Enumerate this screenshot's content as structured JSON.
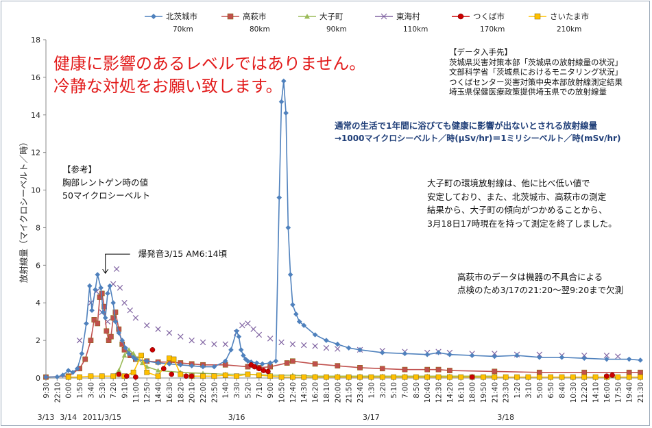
{
  "chart_data": {
    "type": "line",
    "ylabel": "放射線量（マイクロシーベルト／時）",
    "ylim": [
      0,
      18
    ],
    "yticks": [
      0,
      2,
      4,
      6,
      8,
      10,
      12,
      14,
      16,
      18
    ],
    "legend_position": "top",
    "grid": false,
    "xtick_labels": [
      "9:30",
      "22:10",
      "0:00",
      "1:50",
      "3:40",
      "5:30",
      "7:20",
      "9:10",
      "11:00",
      "12:50",
      "14:40",
      "16:30",
      "18:20",
      "20:10",
      "22:00",
      "23:50",
      "1:40",
      "3:30",
      "5:20",
      "7:10",
      "9:00",
      "10:50",
      "12:40",
      "14:30",
      "16:20",
      "18:10",
      "20:00",
      "21:50",
      "23:40",
      "1:30",
      "3:20",
      "5:10",
      "7:00",
      "8:50",
      "10:40",
      "12:30",
      "14:20",
      "16:10",
      "18:00",
      "19:50",
      "21:40",
      "23:30",
      "1:20",
      "3:10",
      "5:00",
      "6:50",
      "8:40",
      "10:30",
      "12:20",
      "14:10",
      "16:00",
      "17:50",
      "19:40",
      "21:30"
    ],
    "date_labels": [
      "3/13",
      "3/14",
      "2011/3/15",
      "3/16",
      "3/17",
      "3/18"
    ],
    "series": [
      {
        "name": "北茨城市",
        "distance": "70km",
        "color": "#4f81bd",
        "marker": "diamond",
        "x": [
          0,
          1,
          1.5,
          2,
          2.4,
          2.8,
          3.2,
          3.6,
          3.9,
          4.1,
          4.4,
          4.6,
          4.9,
          5.1,
          5.3,
          5.5,
          5.7,
          6.0,
          6.2,
          6.5,
          6.8,
          7.1,
          7.4,
          7.8,
          8,
          9,
          10,
          11,
          12,
          13,
          14,
          15,
          16,
          16.5,
          17,
          17.2,
          17.4,
          17.6,
          17.8,
          18,
          18.3,
          18.8,
          19.3,
          20,
          20.5,
          20.8,
          21,
          21.2,
          21.4,
          21.6,
          21.8,
          22,
          22.3,
          22.6,
          23,
          24,
          25,
          26,
          27,
          28,
          30,
          32,
          34,
          35,
          36,
          38,
          40,
          42,
          44,
          46,
          48,
          50,
          52,
          53
        ],
        "values": [
          0.05,
          0.06,
          0.15,
          0.4,
          0.3,
          0.5,
          1.3,
          2.9,
          4.9,
          3.6,
          4.7,
          5.5,
          4.8,
          3.5,
          3.2,
          4.5,
          4.9,
          4.0,
          3.0,
          2.4,
          2.0,
          1.6,
          1.3,
          1.1,
          1.0,
          0.9,
          0.8,
          0.75,
          0.7,
          0.65,
          0.6,
          0.6,
          0.9,
          1.5,
          2.5,
          2.2,
          1.5,
          1.2,
          1.0,
          0.9,
          0.85,
          0.8,
          0.75,
          0.8,
          0.9,
          9.6,
          14.7,
          15.8,
          14.1,
          8.0,
          5.5,
          3.9,
          3.4,
          3.0,
          2.8,
          2.3,
          2.0,
          1.8,
          1.6,
          1.5,
          1.35,
          1.3,
          1.25,
          1.35,
          1.25,
          1.2,
          1.15,
          1.2,
          1.1,
          1.1,
          1.05,
          1.0,
          1.0,
          0.95
        ]
      },
      {
        "name": "高萩市",
        "distance": "80km",
        "color": "#c0504d",
        "marker": "square",
        "x": [
          0,
          2,
          3,
          3.5,
          4,
          4.3,
          4.6,
          4.8,
          5,
          5.2,
          5.4,
          5.6,
          5.8,
          6,
          6.2,
          6.5,
          6.8,
          7,
          7.5,
          8,
          9,
          10,
          11,
          12,
          13,
          14,
          16,
          18,
          19,
          20,
          21.5,
          22,
          24,
          26,
          28,
          30,
          32,
          34,
          35,
          36,
          40,
          44,
          48,
          52,
          53
        ],
        "values": [
          0.05,
          0.1,
          0.5,
          1.0,
          2.0,
          3.1,
          2.9,
          4.3,
          4.5,
          3.8,
          2.5,
          2.0,
          2.2,
          3.2,
          3.5,
          2.6,
          1.8,
          1.5,
          1.2,
          1.0,
          0.9,
          0.85,
          0.85,
          0.8,
          0.75,
          0.7,
          0.7,
          0.6,
          0.55,
          0.6,
          0.8,
          0.9,
          0.75,
          0.65,
          0.55,
          0.5,
          0.45,
          0.45,
          0.45,
          0.4,
          0.35,
          0.3,
          0.3,
          0.3,
          0.3
        ]
      },
      {
        "name": "大子町",
        "distance": "90km",
        "color": "#9bbb59",
        "marker": "triangle",
        "x": [
          6,
          6.5,
          7,
          7.4,
          7.8,
          8.2,
          8.6,
          9,
          10,
          12,
          14,
          16,
          18,
          20,
          22,
          24,
          26,
          28,
          30,
          32,
          34,
          36,
          38,
          40
        ],
        "values": [
          0.1,
          0.4,
          1.2,
          1.5,
          1.3,
          1.0,
          0.8,
          0.6,
          0.4,
          0.3,
          0.25,
          0.2,
          0.2,
          0.15,
          0.15,
          0.1,
          0.1,
          0.1,
          0.1,
          0.1,
          0.1,
          0.1,
          0.1,
          0.1
        ]
      },
      {
        "name": "東海村",
        "distance": "110km",
        "color": "#8064a2",
        "marker": "x",
        "x": [
          3,
          4,
          4.5,
          5,
          5.5,
          6,
          6.3,
          6.6,
          7,
          7.5,
          8,
          9,
          10,
          11,
          12,
          13,
          14,
          15,
          16,
          17,
          17.5,
          18,
          18.5,
          19,
          20,
          21,
          22,
          23,
          24,
          25,
          26,
          28,
          30,
          32,
          34,
          35,
          36,
          38,
          40,
          42,
          44,
          46,
          48,
          50,
          51
        ],
        "values": [
          2.0,
          4.0,
          4.6,
          3.5,
          3.0,
          5.0,
          5.8,
          4.8,
          4.0,
          3.6,
          3.2,
          2.8,
          2.6,
          2.4,
          2.2,
          2.0,
          1.9,
          1.8,
          1.8,
          2.4,
          2.8,
          2.9,
          2.6,
          2.3,
          2.1,
          1.9,
          1.8,
          1.75,
          1.7,
          1.6,
          1.55,
          1.5,
          1.45,
          1.4,
          1.35,
          1.4,
          1.35,
          1.3,
          1.3,
          1.25,
          1.25,
          1.2,
          1.2,
          1.2,
          1.15
        ]
      },
      {
        "name": "つくば市",
        "distance": "170km",
        "color": "#cc0000",
        "marker": "circle",
        "x": [
          6.5,
          7.2,
          8,
          9.5,
          10.5,
          11.2,
          12.5,
          13,
          18.3,
          18.6,
          19,
          19.4,
          19.8,
          38,
          50,
          50.5
        ],
        "values": [
          0.2,
          0.1,
          0.05,
          1.5,
          0.5,
          0.2,
          0.1,
          0.1,
          0.7,
          0.6,
          0.5,
          0.4,
          0.35,
          0.05,
          0.1,
          0.15
        ]
      },
      {
        "name": "さいたま市",
        "distance": "210km",
        "color": "#ffc000",
        "marker": "square",
        "x": [
          2,
          3,
          4,
          5,
          6,
          7,
          7.8,
          8.5,
          9,
          10,
          11,
          11.4,
          12,
          13,
          14,
          15,
          16,
          17,
          18,
          19,
          20,
          21,
          22,
          23,
          24,
          25,
          26,
          27,
          28,
          29,
          30,
          31,
          32,
          33,
          34,
          35,
          36,
          37,
          38,
          39,
          40,
          41,
          42,
          43,
          44,
          45,
          46,
          47,
          48,
          49,
          50,
          51,
          52,
          53
        ],
        "values": [
          0.05,
          0.05,
          0.1,
          0.1,
          0.1,
          0.1,
          0.3,
          1.2,
          0.3,
          0.1,
          1.05,
          1.0,
          0.2,
          0.1,
          0.1,
          0.1,
          0.15,
          0.1,
          0.2,
          0.15,
          0.1,
          0.05,
          0.05,
          0.05,
          0.05,
          0.05,
          0.05,
          0.05,
          0.05,
          0.05,
          0.05,
          0.05,
          0.05,
          0.05,
          0.05,
          0.05,
          0.05,
          0.05,
          0.05,
          0.05,
          0.05,
          0.05,
          0.05,
          0.05,
          0.05,
          0.05,
          0.05,
          0.05,
          0.05,
          0.05,
          0.05,
          0.05,
          0.05,
          0.05
        ]
      }
    ],
    "annotations": {
      "explosion": "爆発音3/15 AM6:14頃",
      "explosion_x": 5.3,
      "explosion_y": 6.3,
      "warning": [
        "健康に影響のあるレベルではありません。",
        "冷静な対処をお願い致します。"
      ],
      "sources": [
        "【データ入手先】",
        "茨城県災害対策本部「茨城県の放射線量の状況」",
        "文部科学省「茨城県におけるモニタリング状況」",
        "つくばセンター災害対策中央本部放射線測定結果",
        "埼玉県保健医療政策提供埼玉県での放射線量"
      ],
      "normal_level": [
        "通常の生活で1年間に浴びても健康に影響が出ないとされる放射線量",
        "→1000マイクロシーベルト／時(μSv/hr)＝1ミリシーベルト／時(mSv/hr)"
      ],
      "reference": [
        "【参考】",
        "胸部レントゲン時の値",
        "50マイクロシーベルト"
      ],
      "daigo_note": [
        "大子町の環境放射線は、他に比べ低い値で",
        "安定しており、また、北茨城市、高萩市の測定",
        "結果から、大子町の傾向がつかめることから、",
        "3月18日17時現在を持って測定を終了しました。"
      ],
      "takahagi_note": [
        "高萩市のデータは機器の不具合による",
        "点検のため3/17の21:20～翌9:20まで欠測"
      ]
    }
  }
}
